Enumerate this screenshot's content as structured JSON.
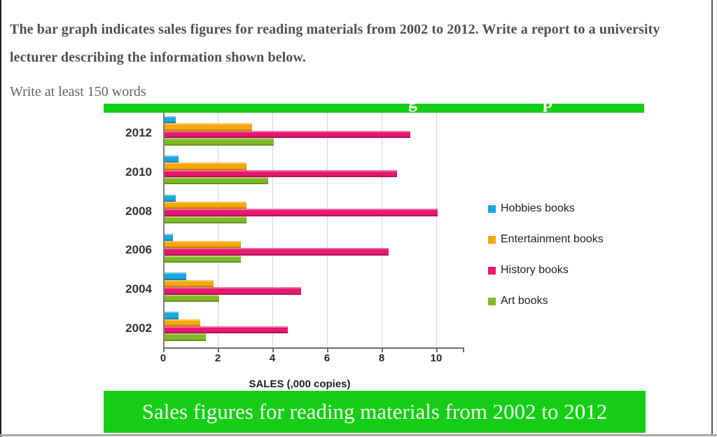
{
  "task": {
    "prompt": "The bar graph indicates sales figures for reading materials from 2002 to 2012. Write a report to a university lecturer describing the information shown below.",
    "note": "Write at least 150 words"
  },
  "top_banner": {
    "clipped_text_fragments": [
      "g",
      "p"
    ]
  },
  "banner_color": "#17ce17",
  "chart_data": {
    "type": "bar",
    "orientation": "horizontal",
    "title": "Sales figures for reading materials from 2002 to 2012",
    "categories": [
      "2012",
      "2010",
      "2008",
      "2006",
      "2004",
      "2002"
    ],
    "series": [
      {
        "name": "Hobbies books",
        "color": "#1BA8DF",
        "values": [
          0.4,
          0.5,
          0.4,
          0.3,
          0.8,
          0.5
        ]
      },
      {
        "name": "Entertainment books",
        "color": "#F6A70B",
        "values": [
          3.2,
          3.0,
          3.0,
          2.8,
          1.8,
          1.3
        ]
      },
      {
        "name": "History books",
        "color": "#E6186F",
        "values": [
          9.0,
          8.5,
          10.0,
          8.2,
          5.0,
          4.5
        ]
      },
      {
        "name": "Art books",
        "color": "#80BA28",
        "values": [
          4.0,
          3.8,
          3.0,
          2.8,
          2.0,
          1.5
        ]
      }
    ],
    "xlabel": "SALES (,000 copies)",
    "x_ticks": [
      "0",
      "2",
      "4",
      "6",
      "8",
      "10"
    ],
    "xlim": [
      0,
      10
    ],
    "legend_position": "right",
    "grid": "vertical gridlines at every 2 units"
  }
}
